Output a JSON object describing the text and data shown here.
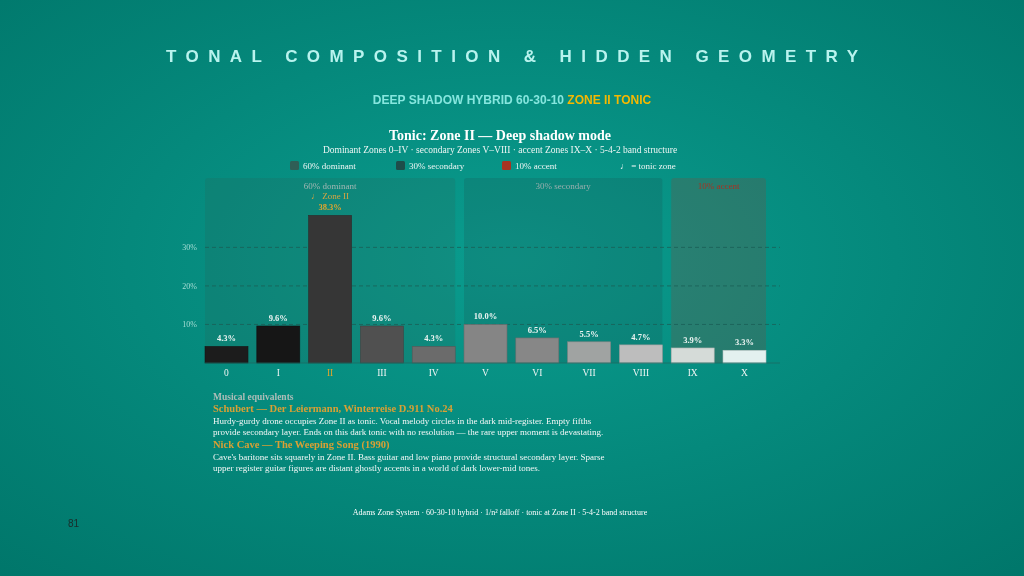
{
  "chart_data": {
    "type": "bar",
    "title": "TONAL COMPOSITION & HIDDEN GEOMETRY",
    "subtitle": "DEEP SHADOW HYBRID 60-30-10 ZONE II TONIC",
    "categories": [
      "0",
      "I",
      "II",
      "III",
      "IV",
      "V",
      "VI",
      "VII",
      "VIII",
      "IX",
      "X"
    ],
    "values": [
      4.3,
      9.6,
      38.3,
      9.6,
      4.3,
      10.0,
      6.5,
      5.5,
      4.7,
      3.9,
      3.3
    ],
    "colors": [
      "#1c1c1c",
      "#161616",
      "#363636",
      "#505050",
      "#6b6b6b",
      "#858585",
      "#878787",
      "#a0a3a2",
      "#bdbdbd",
      "#d5dbd8",
      "#e3f1ef"
    ],
    "value_labels": [
      "4.3%",
      "9.6%",
      "38.3%",
      "9.6%",
      "4.3%",
      "10.0%",
      "6.5%",
      "5.5%",
      "4.7%",
      "3.9%",
      "3.3%"
    ],
    "ylim": [
      0,
      48
    ],
    "yticks": [
      {
        "value": 10,
        "label": "10%"
      },
      {
        "value": 20,
        "label": "20%"
      },
      {
        "value": 30,
        "label": "30%"
      }
    ],
    "grid": "y",
    "legend": "top",
    "bands": [
      {
        "axis": "x",
        "from": "0",
        "to": "IV",
        "label": "60% dominant",
        "color": "#2f5e56"
      },
      {
        "axis": "x",
        "from": "V",
        "to": "VIII",
        "label": "30% secondary",
        "color": "#1e4d4a"
      },
      {
        "axis": "x",
        "from": "IX",
        "to": "X",
        "label": "10% accent",
        "color": "#a83222"
      }
    ],
    "annotations": [
      "Tonic: Zone II — Deep shadow mode",
      "Dominant Zones 0–IV · secondary Zones V–VIII · accent Zones IX–X · 5-4-2 band structure",
      "♩ = tonic zone",
      "Musical equivalents",
      "Schubert — Der Leiermann, Winterreise D.911 No.24",
      "Hurdy-gurdy drone occupies Zone II as tonic. Vocal melody circles in the dark mid-register. Empty fifths provide secondary layer. Ends on this dark tonic with no resolution — the rare upper moment is devastating.",
      "Nick Cave — The Weeping Song (1990)",
      "Cave's baritone sits squarely in Zone II. Bass guitar and low piano provide structural secondary layer. Sparse upper register guitar figures are distant ghostly accents in a world of dark lower-mid tones.",
      "Adams Zone System · 60-30-10 hybrid · 1/n² falloff · tonic at Zone II · 5-4-2 band structure",
      "81",
      {
        "text": "♩ Zone II",
        "x": "II",
        "y": 38.3
      }
    ]
  }
}
